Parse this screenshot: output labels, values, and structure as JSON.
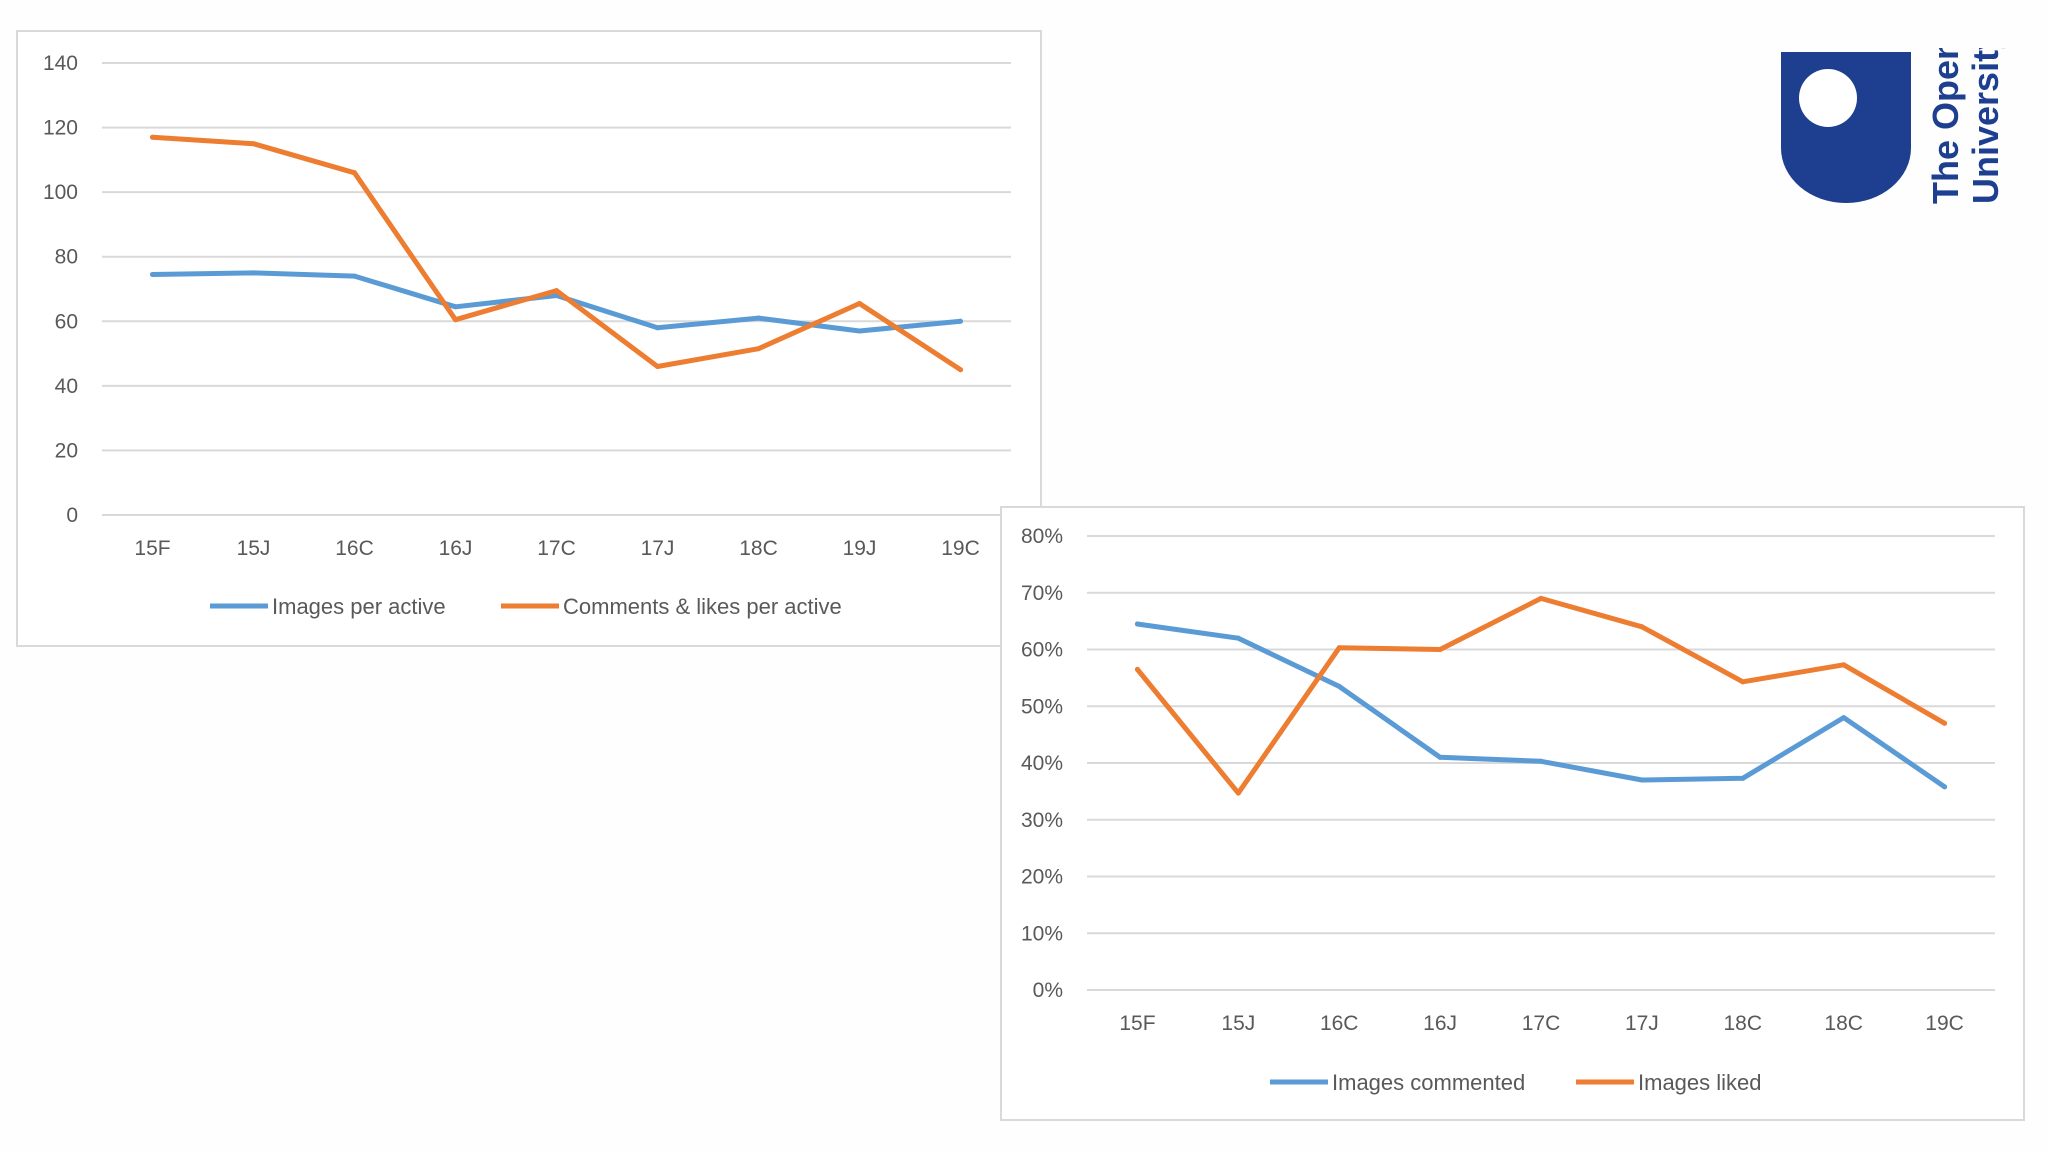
{
  "logo": {
    "line1": "The Open",
    "line2": "University",
    "color": "#1e3f8f"
  },
  "chart_data": [
    {
      "type": "line",
      "title": "",
      "xlabel": "",
      "ylabel": "",
      "categories": [
        "15F",
        "15J",
        "16C",
        "16J",
        "17C",
        "17J",
        "18C",
        "19J",
        "19C"
      ],
      "ylim": [
        0,
        140
      ],
      "yticks": [
        0,
        20,
        40,
        60,
        80,
        100,
        120,
        140
      ],
      "ytick_labels": [
        "0",
        "20",
        "40",
        "60",
        "80",
        "100",
        "120",
        "140"
      ],
      "grid": true,
      "legend_position": "bottom",
      "series": [
        {
          "name": "Images per active",
          "color": "#5b9bd5",
          "values": [
            74.5,
            75,
            74,
            64.5,
            68,
            58,
            61,
            57,
            60
          ]
        },
        {
          "name": "Comments & likes per active",
          "color": "#ed7d31",
          "values": [
            117,
            115,
            106,
            60.5,
            69.5,
            46,
            51.5,
            65.5,
            45
          ]
        }
      ]
    },
    {
      "type": "line",
      "title": "",
      "xlabel": "",
      "ylabel": "",
      "categories": [
        "15F",
        "15J",
        "16C",
        "16J",
        "17C",
        "17J",
        "18C",
        "18C",
        "19C"
      ],
      "ylim": [
        0,
        0.8
      ],
      "yticks": [
        0,
        0.1,
        0.2,
        0.3,
        0.4,
        0.5,
        0.6,
        0.7,
        0.8
      ],
      "ytick_labels": [
        "0%",
        "10%",
        "20%",
        "30%",
        "40%",
        "50%",
        "60%",
        "70%",
        "80%"
      ],
      "grid": true,
      "legend_position": "bottom",
      "series": [
        {
          "name": "Images commented",
          "color": "#5b9bd5",
          "values": [
            0.645,
            0.62,
            0.535,
            0.41,
            0.403,
            0.37,
            0.373,
            0.48,
            0.358
          ]
        },
        {
          "name": "Images liked",
          "color": "#ed7d31",
          "values": [
            0.565,
            0.347,
            0.603,
            0.6,
            0.69,
            0.64,
            0.543,
            0.573,
            0.47
          ]
        }
      ]
    }
  ]
}
